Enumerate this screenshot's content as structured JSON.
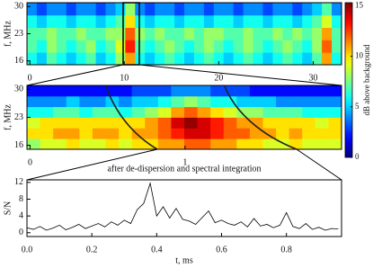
{
  "chart_data": [
    {
      "type": "heatmap",
      "ylabel": "f, MHz",
      "xlim": [
        -0.3,
        33
      ],
      "xticks": [
        0,
        10,
        20,
        30
      ],
      "ylim": [
        15,
        31
      ],
      "yticks": [
        16,
        23,
        30
      ],
      "zlim": [
        0,
        15.3
      ],
      "zticks": [
        0,
        5,
        10,
        15
      ],
      "colorbar_label": "dB above background",
      "z": [
        [
          6,
          5,
          7,
          6,
          5,
          6,
          7,
          5,
          6,
          8,
          11,
          6,
          5,
          6,
          7,
          6,
          5,
          6,
          7,
          6,
          5,
          6,
          7,
          6,
          5,
          6,
          7,
          6,
          5,
          7,
          11,
          6
        ],
        [
          7,
          6,
          8,
          7,
          6,
          7,
          8,
          6,
          7,
          9,
          13,
          7,
          6,
          7,
          8,
          7,
          6,
          7,
          8,
          7,
          6,
          7,
          8,
          7,
          6,
          7,
          8,
          7,
          6,
          8,
          12,
          7
        ],
        [
          7,
          7,
          8,
          7,
          7,
          8,
          7,
          7,
          8,
          8,
          12,
          8,
          7,
          8,
          7,
          7,
          8,
          7,
          8,
          8,
          7,
          7,
          8,
          7,
          7,
          8,
          7,
          8,
          7,
          8,
          11,
          7
        ],
        [
          6,
          5,
          6,
          6,
          5,
          6,
          6,
          5,
          6,
          7,
          10,
          6,
          5,
          6,
          6,
          5,
          6,
          6,
          5,
          6,
          6,
          5,
          6,
          6,
          5,
          6,
          6,
          5,
          6,
          7,
          9,
          6
        ],
        [
          4,
          3,
          4,
          4,
          3,
          4,
          4,
          3,
          4,
          5,
          8,
          4,
          3,
          4,
          4,
          3,
          4,
          4,
          3,
          4,
          4,
          3,
          4,
          4,
          3,
          4,
          4,
          3,
          4,
          5,
          7,
          4
        ]
      ]
    },
    {
      "type": "heatmap",
      "ylabel": "f, MHz",
      "xlim": [
        -0.02,
        2.01
      ],
      "xticks": [
        0,
        1
      ],
      "ylim": [
        15,
        31
      ],
      "yticks": [
        16,
        23,
        30
      ],
      "z": [
        [
          8,
          9,
          9,
          10,
          9,
          9,
          10,
          9,
          10,
          10,
          11,
          11,
          12,
          12,
          11,
          11,
          10,
          10,
          9,
          9,
          10,
          9,
          9,
          9
        ],
        [
          10,
          10,
          11,
          11,
          10,
          11,
          11,
          10,
          11,
          11,
          12,
          13,
          14,
          14,
          13,
          12,
          12,
          11,
          11,
          10,
          11,
          10,
          10,
          10
        ],
        [
          9,
          10,
          10,
          10,
          10,
          10,
          10,
          10,
          10,
          11,
          12,
          14,
          15,
          14,
          13,
          12,
          11,
          11,
          10,
          10,
          10,
          10,
          9,
          10
        ],
        [
          6,
          6,
          7,
          7,
          6,
          7,
          7,
          6,
          7,
          8,
          9,
          11,
          12,
          11,
          10,
          9,
          8,
          8,
          7,
          7,
          7,
          6,
          6,
          6
        ],
        [
          4,
          4,
          4,
          5,
          4,
          4,
          5,
          4,
          5,
          5,
          6,
          7,
          8,
          7,
          6,
          6,
          5,
          5,
          5,
          4,
          4,
          4,
          4,
          4
        ],
        [
          2,
          2,
          2,
          2,
          2,
          2,
          2,
          2,
          3,
          3,
          3,
          4,
          4,
          4,
          3,
          3,
          3,
          2,
          2,
          2,
          2,
          2,
          2,
          2
        ]
      ]
    },
    {
      "type": "line",
      "title": "after de-dispersion and spectral integration",
      "ylabel": "S/N",
      "xlabel": "t, ms",
      "xlim": [
        0,
        0.97
      ],
      "xticks": [
        {
          "value": 0,
          "label": "0.0"
        },
        0.2,
        0.4,
        0.6,
        0.8
      ],
      "ylim": [
        -0.9,
        12.6
      ],
      "yticks": [
        0,
        4,
        8,
        12
      ],
      "color": "#000000",
      "x": [
        0,
        0.02,
        0.04,
        0.06,
        0.08,
        0.1,
        0.12,
        0.14,
        0.16,
        0.18,
        0.2,
        0.22,
        0.24,
        0.26,
        0.28,
        0.3,
        0.32,
        0.34,
        0.36,
        0.38,
        0.4,
        0.42,
        0.44,
        0.46,
        0.48,
        0.5,
        0.52,
        0.54,
        0.56,
        0.58,
        0.6,
        0.62,
        0.64,
        0.66,
        0.68,
        0.7,
        0.72,
        0.74,
        0.76,
        0.78,
        0.8,
        0.82,
        0.84,
        0.86,
        0.88,
        0.9,
        0.92,
        0.94,
        0.96
      ],
      "values": [
        1.2,
        0.8,
        1.5,
        0.6,
        1.1,
        1.8,
        0.7,
        1.3,
        2.0,
        1.0,
        1.6,
        2.2,
        1.4,
        2.6,
        1.8,
        3.0,
        2.2,
        5.5,
        7.0,
        11.8,
        4.0,
        6.2,
        3.5,
        5.8,
        3.2,
        2.8,
        2.0,
        3.6,
        5.2,
        2.4,
        3.0,
        2.2,
        1.8,
        2.6,
        1.4,
        3.4,
        1.6,
        2.0,
        1.2,
        1.8,
        4.8,
        1.5,
        1.0,
        2.2,
        0.8,
        1.3,
        0.6,
        1.0,
        0.9
      ]
    }
  ]
}
